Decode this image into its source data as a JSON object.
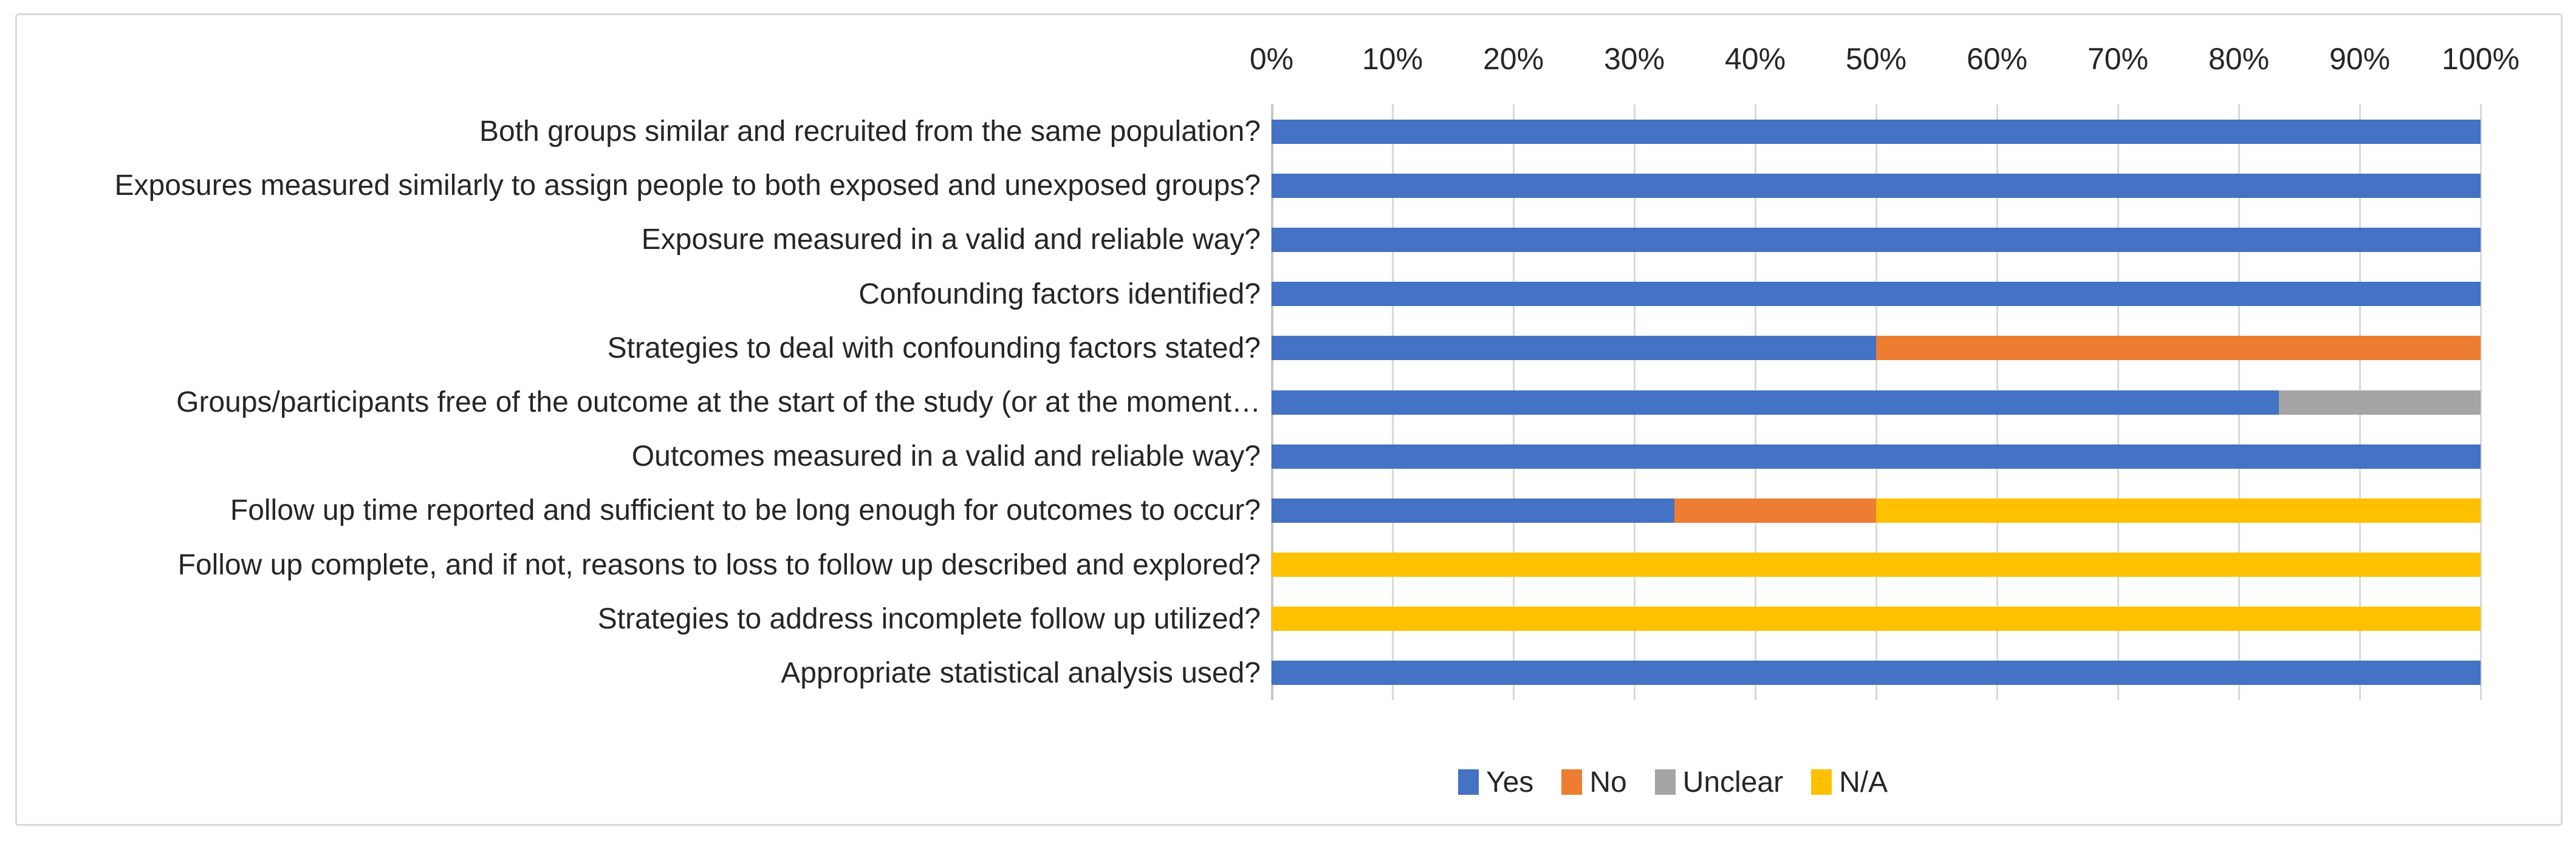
{
  "chart_data": {
    "type": "bar",
    "orientation": "horizontal",
    "stacked": true,
    "title": "",
    "xlabel": "",
    "ylabel": "",
    "categories": [
      "Both groups similar and recruited from the same population?",
      "Exposures measured similarly to assign people to both exposed and unexposed groups?",
      "Exposure measured in a valid and reliable way?",
      "Confounding factors identified?",
      "Strategies to deal with confounding factors stated?",
      "Groups/participants free of the outcome at the start of the study (or at the moment…",
      "Outcomes measured in a valid and reliable way?",
      "Follow up time reported and sufficient to be long enough for outcomes to occur?",
      "Follow up complete, and if not, reasons to loss to follow up described and explored?",
      "Strategies to address incomplete follow up utilized?",
      "Appropriate statistical analysis used?"
    ],
    "series": [
      {
        "name": "Yes",
        "color": "#4472C4",
        "values": [
          100,
          100,
          100,
          100,
          50,
          83.33,
          100,
          33.33,
          0,
          0,
          100
        ]
      },
      {
        "name": "No",
        "color": "#ED7D31",
        "values": [
          0,
          0,
          0,
          0,
          50,
          0,
          0,
          16.67,
          0,
          0,
          0
        ]
      },
      {
        "name": "Unclear",
        "color": "#A5A5A5",
        "values": [
          0,
          0,
          0,
          0,
          0,
          16.67,
          0,
          0,
          0,
          0,
          0
        ]
      },
      {
        "name": "N/A",
        "color": "#FFC000",
        "values": [
          0,
          0,
          0,
          0,
          0,
          0,
          0,
          50,
          100,
          100,
          0
        ]
      }
    ],
    "x_axis": {
      "position": "top",
      "min": 0,
      "max": 100,
      "tick_step": 10,
      "tick_labels": [
        "0%",
        "10%",
        "20%",
        "30%",
        "40%",
        "50%",
        "60%",
        "70%",
        "80%",
        "90%",
        "100%"
      ]
    },
    "legend": {
      "position": "bottom",
      "entries": [
        "Yes",
        "No",
        "Unclear",
        "N/A"
      ]
    },
    "grid": true,
    "gridline_color": "#D9D9D9",
    "text_color": "#262626",
    "frame_border_color": "#D9D9D9"
  }
}
